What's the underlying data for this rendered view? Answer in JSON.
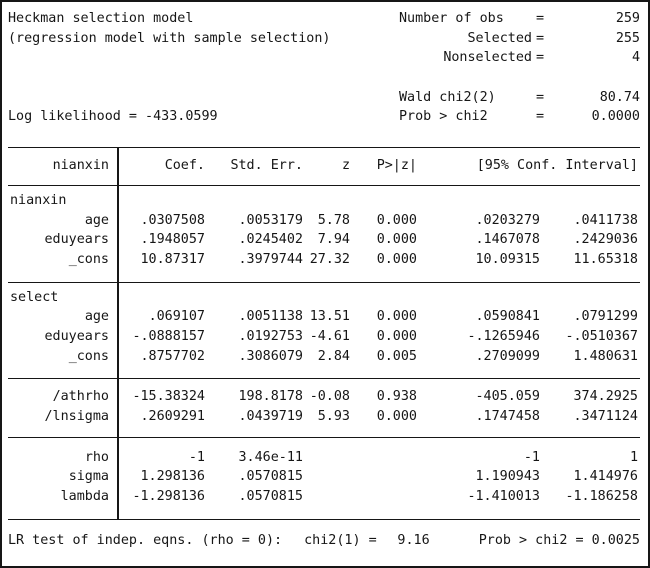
{
  "model": {
    "title": "Heckman selection model",
    "subtitle": "(regression model with sample selection)",
    "log_likelihood": "Log likelihood = -433.0599",
    "stats": [
      {
        "label": "Number of obs",
        "eq": "=",
        "value": "259"
      },
      {
        "label": "Selected",
        "eq": "=",
        "value": "255"
      },
      {
        "label": "Nonselected",
        "eq": "=",
        "value": "4"
      },
      {
        "label": "",
        "eq": "",
        "value": ""
      },
      {
        "label": "Wald chi2(2)",
        "eq": "=",
        "value": "80.74"
      },
      {
        "label": "Prob > chi2",
        "eq": "=",
        "value": "0.0000"
      }
    ]
  },
  "table": {
    "depvar": "nianxin",
    "columns": {
      "coef": "Coef.",
      "se": "Std. Err.",
      "z": "z",
      "p": "P>|z|",
      "ci": "[95% Conf. Interval]"
    },
    "groups": [
      {
        "section": "nianxin",
        "rows": [
          {
            "name": "age",
            "coef": ".0307508",
            "se": ".0053179",
            "z": "5.78",
            "p": "0.000",
            "ci_lo": ".0203279",
            "ci_hi": ".0411738"
          },
          {
            "name": "eduyears",
            "coef": ".1948057",
            "se": ".0245402",
            "z": "7.94",
            "p": "0.000",
            "ci_lo": ".1467078",
            "ci_hi": ".2429036"
          },
          {
            "name": "_cons",
            "coef": "10.87317",
            "se": ".3979744",
            "z": "27.32",
            "p": "0.000",
            "ci_lo": "10.09315",
            "ci_hi": "11.65318"
          }
        ]
      },
      {
        "section": "select",
        "rows": [
          {
            "name": "age",
            "coef": ".069107",
            "se": ".0051138",
            "z": "13.51",
            "p": "0.000",
            "ci_lo": ".0590841",
            "ci_hi": ".0791299"
          },
          {
            "name": "eduyears",
            "coef": "-.0888157",
            "se": ".0192753",
            "z": "-4.61",
            "p": "0.000",
            "ci_lo": "-.1265946",
            "ci_hi": "-.0510367"
          },
          {
            "name": "_cons",
            "coef": ".8757702",
            "se": ".3086079",
            "z": "2.84",
            "p": "0.005",
            "ci_lo": ".2709099",
            "ci_hi": "1.480631"
          }
        ]
      },
      {
        "section": "",
        "rows": [
          {
            "name": "/athrho",
            "coef": "-15.38324",
            "se": "198.8178",
            "z": "-0.08",
            "p": "0.938",
            "ci_lo": "-405.059",
            "ci_hi": "374.2925"
          },
          {
            "name": "/lnsigma",
            "coef": ".2609291",
            "se": ".0439719",
            "z": "5.93",
            "p": "0.000",
            "ci_lo": ".1747458",
            "ci_hi": ".3471124"
          }
        ]
      },
      {
        "section": "",
        "rows": [
          {
            "name": "rho",
            "coef": "-1",
            "se": "3.46e-11",
            "z": "",
            "p": "",
            "ci_lo": "-1",
            "ci_hi": "1"
          },
          {
            "name": "sigma",
            "coef": "1.298136",
            "se": ".0570815",
            "z": "",
            "p": "",
            "ci_lo": "1.190943",
            "ci_hi": "1.414976"
          },
          {
            "name": "lambda",
            "coef": "-1.298136",
            "se": ".0570815",
            "z": "",
            "p": "",
            "ci_lo": "-1.410013",
            "ci_hi": "-1.186258"
          }
        ]
      }
    ]
  },
  "footer": {
    "lr_label": "LR test of indep. eqns. (rho = 0):",
    "chi2_label": "chi2(1) =",
    "chi2_value": "9.16",
    "prob_label": "Prob > chi2 = 0.0025"
  }
}
